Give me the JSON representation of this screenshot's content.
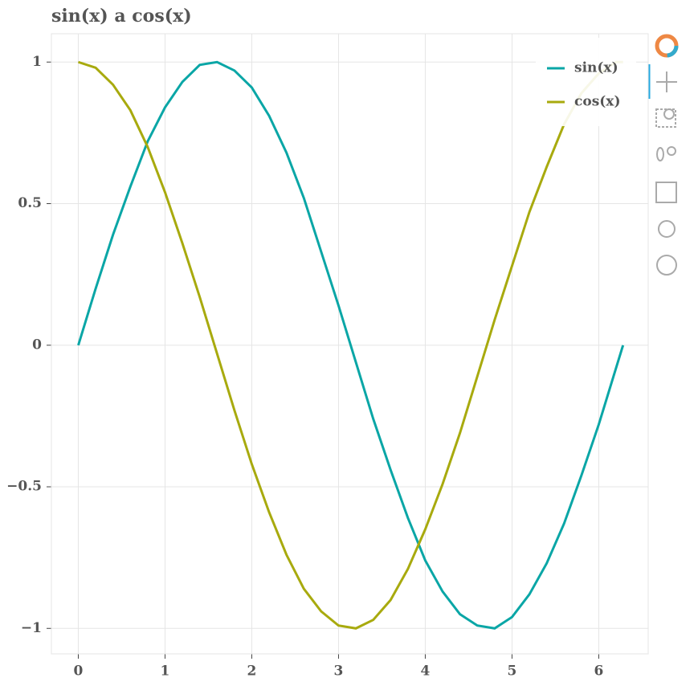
{
  "chart_data": {
    "type": "line",
    "title": "sin(x) a cos(x)",
    "x": [
      0,
      0.2,
      0.4,
      0.6,
      0.8,
      1.0,
      1.2,
      1.4,
      1.6,
      1.8,
      2.0,
      2.2,
      2.4,
      2.6,
      2.8,
      3.0,
      3.2,
      3.4,
      3.6,
      3.8,
      4.0,
      4.2,
      4.4,
      4.6,
      4.8,
      5.0,
      5.2,
      5.4,
      5.6,
      5.8,
      6.0,
      6.2,
      6.28
    ],
    "series": [
      {
        "name": "sin(x)",
        "color": "#0aa6a6",
        "values": [
          0,
          0.2,
          0.39,
          0.56,
          0.72,
          0.84,
          0.93,
          0.99,
          1.0,
          0.97,
          0.91,
          0.81,
          0.68,
          0.52,
          0.33,
          0.14,
          -0.06,
          -0.26,
          -0.44,
          -0.61,
          -0.76,
          -0.87,
          -0.95,
          -0.99,
          -1.0,
          -0.96,
          -0.88,
          -0.77,
          -0.63,
          -0.46,
          -0.28,
          -0.08,
          0.0
        ]
      },
      {
        "name": "cos(x)",
        "color": "#a8aa0e",
        "values": [
          1,
          0.98,
          0.92,
          0.83,
          0.7,
          0.54,
          0.36,
          0.17,
          -0.03,
          -0.23,
          -0.42,
          -0.59,
          -0.74,
          -0.86,
          -0.94,
          -0.99,
          -1.0,
          -0.97,
          -0.9,
          -0.79,
          -0.65,
          -0.49,
          -0.31,
          -0.11,
          0.09,
          0.28,
          0.47,
          0.63,
          0.78,
          0.89,
          0.96,
          1.0,
          1.0
        ]
      }
    ],
    "xlim": [
      -0.31,
      6.57
    ],
    "ylim": [
      -1.09,
      1.1
    ],
    "xticks": [
      0,
      1,
      2,
      3,
      4,
      5,
      6
    ],
    "yticks": [
      {
        "value": -1,
        "label": "−1"
      },
      {
        "value": -0.5,
        "label": "−0.5"
      },
      0,
      0.5,
      1
    ],
    "grid": true,
    "legend": "top-right"
  }
}
